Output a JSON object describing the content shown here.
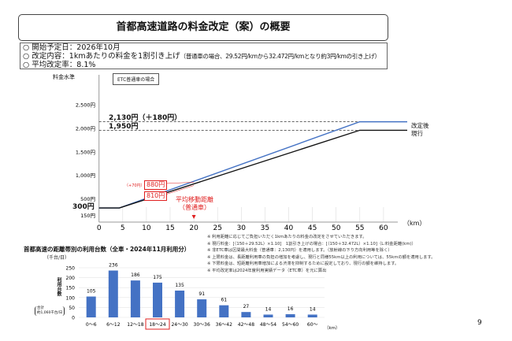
{
  "title": "首都高速道路の料金改定（案）の概要",
  "info": {
    "line1": "○ 開始予定日：2026年10月",
    "line2_main": "○ 改定内容：1kmあたりの料金を1割引き上げ",
    "line2_note": "（普通車の場合、29.52円/kmから32.472円/kmとなり約3円/kmの引き上げ）",
    "line3": "○ 平均改定率：8.1%"
  },
  "chart_data": [
    {
      "type": "line",
      "ylabel": "料金水準",
      "xlabel": "（km）",
      "note_box": "ETC普通車の場合",
      "xticks": [
        "0",
        "5",
        "10",
        "15",
        "20",
        "25",
        "30",
        "35",
        "40",
        "45",
        "50",
        "55",
        "60"
      ],
      "yticks": [
        {
          "v": 150,
          "label": "150円"
        },
        {
          "v": 500,
          "label": "500円"
        },
        {
          "v": 1000,
          "label": "1,000円"
        },
        {
          "v": 1500,
          "label": "1,500円"
        },
        {
          "v": 2000,
          "label": "2,000円"
        },
        {
          "v": 2500,
          "label": "2,500円"
        }
      ],
      "series": [
        {
          "name": "改定後",
          "color": "#4472c4",
          "points": [
            [
              0,
              300
            ],
            [
              4.3,
              300
            ],
            [
              55,
              2130
            ],
            [
              65,
              2130
            ]
          ]
        },
        {
          "name": "現行",
          "color": "#111111",
          "points": [
            [
              0,
              300
            ],
            [
              4.3,
              300
            ],
            [
              55,
              1950
            ],
            [
              65,
              1950
            ]
          ]
        }
      ],
      "annotations": {
        "min_label": "300円",
        "max_new": "2,130円（＋180円）",
        "max_current": "1,950円",
        "at20_new": "880円",
        "at20_current": "810円",
        "diff": "（+70円）",
        "avg_distance": "平均移動距離",
        "avg_distance_sub": "（普通車）"
      }
    },
    {
      "type": "bar",
      "title": "首都高速の距離帯別の利用台数（全車・2024年11月利用分）",
      "yunit": "（千台/日）",
      "ylabel": "利用台数",
      "total_label": "合計",
      "total_value": "約1,060千台/日",
      "xunit": "（km）",
      "categories": [
        "0～6",
        "6～12",
        "12～18",
        "18～24",
        "24～30",
        "30～36",
        "36～42",
        "42～48",
        "48～54",
        "54～60",
        "60～"
      ],
      "values": [
        105,
        236,
        186,
        175,
        135,
        91,
        61,
        27,
        14,
        16,
        14
      ],
      "highlight": "18～24",
      "ylim": [
        0,
        250
      ],
      "yticks": [
        "0",
        "50",
        "100",
        "150",
        "200",
        "250"
      ],
      "color": "#4472c4"
    }
  ],
  "notes": [
    "※ 利用距離に応じてご負担いただく1kmあたりの料金の改定をさせていただきます。",
    "※ 現行料金：[（150＋29.52L）×1.10]　1割引き上げの場合：[（150＋32.472L）×1.10]（L:料金距離(km)）",
    "※ 非ETC車は区間最大料金（普通車：2,130円）を適用します。（放射線の下り方向利用等を除く）",
    "※ 上限料金は、長距離利用車の負担の増加を考慮し、現行と同様55km以上の利用については、55kmの額を適用します。",
    "※ 下限料金は、短距離利用車増加による渋滞を抑制するために設定しており、現行の額を維持します。",
    "※ 平均改定率は2024年度利用実績データ（ETC車）を元に算出"
  ],
  "page_number": "9"
}
